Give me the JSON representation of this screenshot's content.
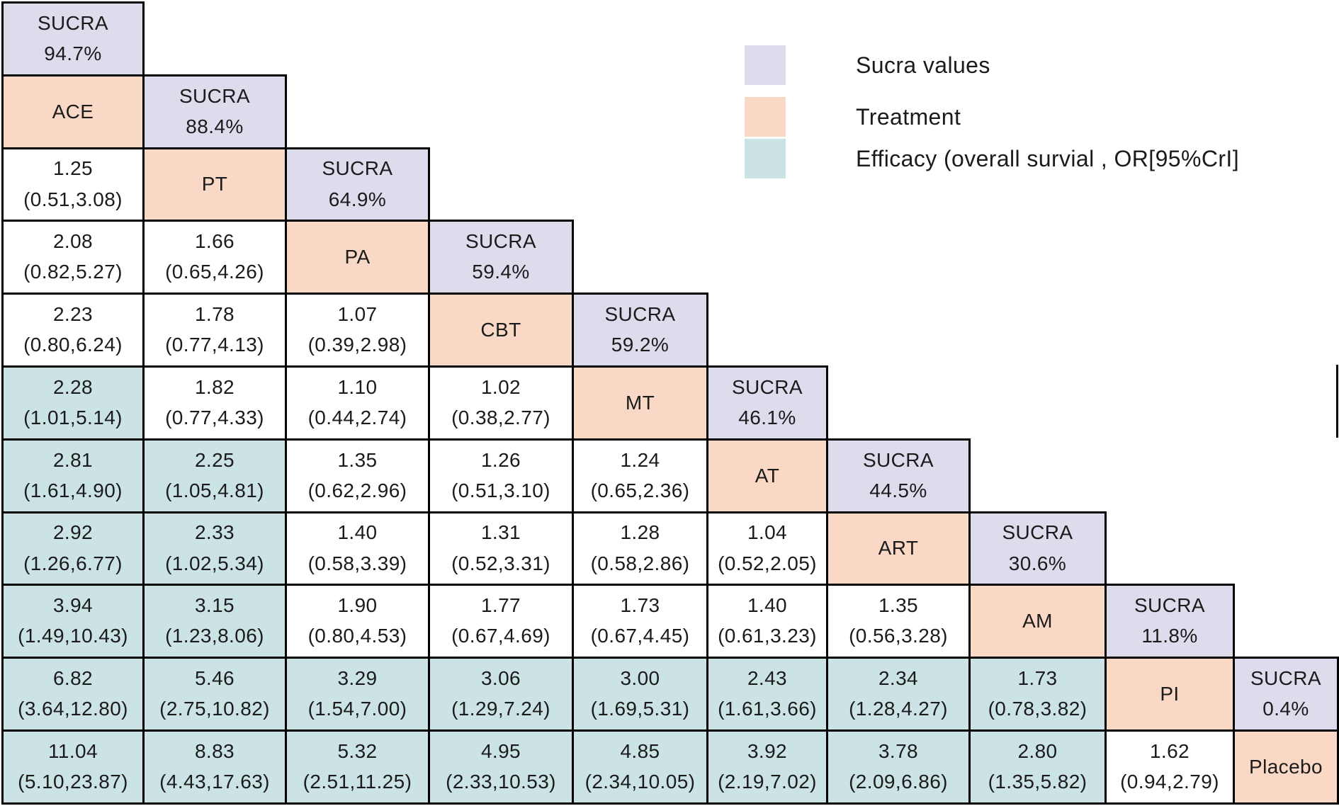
{
  "colors": {
    "sucra": "#dcdcec",
    "treatment": "#f9d9c6",
    "efficacy": "#cbe3e4",
    "plain": "#ffffff",
    "border": "#000000",
    "text": "#1b1b1b"
  },
  "legend": {
    "items": [
      {
        "swatch": "sucra",
        "label": "Sucra values"
      },
      {
        "swatch": "treatment",
        "label": "Treatment"
      },
      {
        "swatch": "efficacy",
        "label": "Efficacy (overall survial ,  OR[95%CrI]"
      }
    ]
  },
  "chart_data": {
    "type": "table",
    "treatments": [
      {
        "abbr": "ACE",
        "sucra": "94.7%"
      },
      {
        "abbr": "PT",
        "sucra": "88.4%"
      },
      {
        "abbr": "PA",
        "sucra": "64.9%"
      },
      {
        "abbr": "CBT",
        "sucra": "59.4%"
      },
      {
        "abbr": "MT",
        "sucra": "59.2%"
      },
      {
        "abbr": "AT",
        "sucra": "46.1%"
      },
      {
        "abbr": "ART",
        "sucra": "44.5%"
      },
      {
        "abbr": "AM",
        "sucra": "30.6%"
      },
      {
        "abbr": "PI",
        "sucra": "11.8%"
      },
      {
        "abbr": "Placebo",
        "sucra": "0.4%"
      }
    ],
    "rows": [
      {
        "cells": [
          {
            "kind": "sucra",
            "fill": "sucra",
            "lines": [
              "SUCRA",
              "94.7%"
            ]
          }
        ]
      },
      {
        "cells": [
          {
            "kind": "treatment",
            "fill": "treatment",
            "lines": [
              "ACE"
            ]
          },
          {
            "kind": "sucra",
            "fill": "sucra",
            "lines": [
              "SUCRA",
              "88.4%"
            ]
          }
        ]
      },
      {
        "cells": [
          {
            "kind": "or",
            "fill": "plain",
            "lines": [
              "1.25",
              "(0.51,3.08)"
            ]
          },
          {
            "kind": "treatment",
            "fill": "treatment",
            "lines": [
              "PT"
            ]
          },
          {
            "kind": "sucra",
            "fill": "sucra",
            "lines": [
              "SUCRA",
              "64.9%"
            ]
          }
        ]
      },
      {
        "cells": [
          {
            "kind": "or",
            "fill": "plain",
            "lines": [
              "2.08",
              "(0.82,5.27)"
            ]
          },
          {
            "kind": "or",
            "fill": "plain",
            "lines": [
              "1.66",
              "(0.65,4.26)"
            ]
          },
          {
            "kind": "treatment",
            "fill": "treatment",
            "lines": [
              "PA"
            ]
          },
          {
            "kind": "sucra",
            "fill": "sucra",
            "lines": [
              "SUCRA",
              "59.4%"
            ]
          }
        ]
      },
      {
        "cells": [
          {
            "kind": "or",
            "fill": "plain",
            "lines": [
              "2.23",
              "(0.80,6.24)"
            ]
          },
          {
            "kind": "or",
            "fill": "plain",
            "lines": [
              "1.78",
              "(0.77,4.13)"
            ]
          },
          {
            "kind": "or",
            "fill": "plain",
            "lines": [
              "1.07",
              "(0.39,2.98)"
            ]
          },
          {
            "kind": "treatment",
            "fill": "treatment",
            "lines": [
              "CBT"
            ]
          },
          {
            "kind": "sucra",
            "fill": "sucra",
            "lines": [
              "SUCRA",
              "59.2%"
            ]
          }
        ]
      },
      {
        "cells": [
          {
            "kind": "or",
            "fill": "efficacy",
            "lines": [
              "2.28",
              "(1.01,5.14)"
            ]
          },
          {
            "kind": "or",
            "fill": "plain",
            "lines": [
              "1.82",
              "(0.77,4.33)"
            ]
          },
          {
            "kind": "or",
            "fill": "plain",
            "lines": [
              "1.10",
              "(0.44,2.74)"
            ]
          },
          {
            "kind": "or",
            "fill": "plain",
            "lines": [
              "1.02",
              "(0.38,2.77)"
            ]
          },
          {
            "kind": "treatment",
            "fill": "treatment",
            "lines": [
              "MT"
            ]
          },
          {
            "kind": "sucra",
            "fill": "sucra",
            "lines": [
              "SUCRA",
              "46.1%"
            ]
          }
        ]
      },
      {
        "cells": [
          {
            "kind": "or",
            "fill": "efficacy",
            "lines": [
              "2.81",
              "(1.61,4.90)"
            ]
          },
          {
            "kind": "or",
            "fill": "efficacy",
            "lines": [
              "2.25",
              "(1.05,4.81)"
            ]
          },
          {
            "kind": "or",
            "fill": "plain",
            "lines": [
              "1.35",
              "(0.62,2.96)"
            ]
          },
          {
            "kind": "or",
            "fill": "plain",
            "lines": [
              "1.26",
              "(0.51,3.10)"
            ]
          },
          {
            "kind": "or",
            "fill": "plain",
            "lines": [
              "1.24",
              "(0.65,2.36)"
            ]
          },
          {
            "kind": "treatment",
            "fill": "treatment",
            "lines": [
              "AT"
            ]
          },
          {
            "kind": "sucra",
            "fill": "sucra",
            "lines": [
              "SUCRA",
              "44.5%"
            ]
          }
        ]
      },
      {
        "cells": [
          {
            "kind": "or",
            "fill": "efficacy",
            "lines": [
              "2.92",
              "(1.26,6.77)"
            ]
          },
          {
            "kind": "or",
            "fill": "efficacy",
            "lines": [
              "2.33",
              "(1.02,5.34)"
            ]
          },
          {
            "kind": "or",
            "fill": "plain",
            "lines": [
              "1.40",
              "(0.58,3.39)"
            ]
          },
          {
            "kind": "or",
            "fill": "plain",
            "lines": [
              "1.31",
              "(0.52,3.31)"
            ]
          },
          {
            "kind": "or",
            "fill": "plain",
            "lines": [
              "1.28",
              "(0.58,2.86)"
            ]
          },
          {
            "kind": "or",
            "fill": "plain",
            "lines": [
              "1.04",
              "(0.52,2.05)"
            ]
          },
          {
            "kind": "treatment",
            "fill": "treatment",
            "lines": [
              "ART"
            ]
          },
          {
            "kind": "sucra",
            "fill": "sucra",
            "lines": [
              "SUCRA",
              "30.6%"
            ]
          }
        ]
      },
      {
        "cells": [
          {
            "kind": "or",
            "fill": "efficacy",
            "lines": [
              "3.94",
              "(1.49,10.43)"
            ]
          },
          {
            "kind": "or",
            "fill": "efficacy",
            "lines": [
              "3.15",
              "(1.23,8.06)"
            ]
          },
          {
            "kind": "or",
            "fill": "plain",
            "lines": [
              "1.90",
              "(0.80,4.53)"
            ]
          },
          {
            "kind": "or",
            "fill": "plain",
            "lines": [
              "1.77",
              "(0.67,4.69)"
            ]
          },
          {
            "kind": "or",
            "fill": "plain",
            "lines": [
              "1.73",
              "(0.67,4.45)"
            ]
          },
          {
            "kind": "or",
            "fill": "plain",
            "lines": [
              "1.40",
              "(0.61,3.23)"
            ]
          },
          {
            "kind": "or",
            "fill": "plain",
            "lines": [
              "1.35",
              "(0.56,3.28)"
            ]
          },
          {
            "kind": "treatment",
            "fill": "treatment",
            "lines": [
              "AM"
            ]
          },
          {
            "kind": "sucra",
            "fill": "sucra",
            "lines": [
              "SUCRA",
              "11.8%"
            ]
          }
        ]
      },
      {
        "cells": [
          {
            "kind": "or",
            "fill": "efficacy",
            "lines": [
              "6.82",
              "(3.64,12.80)"
            ]
          },
          {
            "kind": "or",
            "fill": "efficacy",
            "lines": [
              "5.46",
              "(2.75,10.82)"
            ]
          },
          {
            "kind": "or",
            "fill": "efficacy",
            "lines": [
              "3.29",
              "(1.54,7.00)"
            ]
          },
          {
            "kind": "or",
            "fill": "efficacy",
            "lines": [
              "3.06",
              "(1.29,7.24)"
            ]
          },
          {
            "kind": "or",
            "fill": "efficacy",
            "lines": [
              "3.00",
              "(1.69,5.31)"
            ]
          },
          {
            "kind": "or",
            "fill": "efficacy",
            "lines": [
              "2.43",
              "(1.61,3.66)"
            ]
          },
          {
            "kind": "or",
            "fill": "efficacy",
            "lines": [
              "2.34",
              "(1.28,4.27)"
            ]
          },
          {
            "kind": "or",
            "fill": "efficacy",
            "lines": [
              "1.73",
              "(0.78,3.82)"
            ]
          },
          {
            "kind": "treatment",
            "fill": "treatment",
            "lines": [
              "PI"
            ]
          },
          {
            "kind": "sucra",
            "fill": "sucra",
            "lines": [
              "SUCRA",
              "0.4%"
            ]
          }
        ]
      },
      {
        "cells": [
          {
            "kind": "or",
            "fill": "efficacy",
            "lines": [
              "11.04",
              "(5.10,23.87)"
            ]
          },
          {
            "kind": "or",
            "fill": "efficacy",
            "lines": [
              "8.83",
              "(4.43,17.63)"
            ]
          },
          {
            "kind": "or",
            "fill": "efficacy",
            "lines": [
              "5.32",
              "(2.51,11.25)"
            ]
          },
          {
            "kind": "or",
            "fill": "efficacy",
            "lines": [
              "4.95",
              "(2.33,10.53)"
            ]
          },
          {
            "kind": "or",
            "fill": "efficacy",
            "lines": [
              "4.85",
              "(2.34,10.05)"
            ]
          },
          {
            "kind": "or",
            "fill": "efficacy",
            "lines": [
              "3.92",
              "(2.19,7.02)"
            ]
          },
          {
            "kind": "or",
            "fill": "efficacy",
            "lines": [
              "3.78",
              "(2.09,6.86)"
            ]
          },
          {
            "kind": "or",
            "fill": "efficacy",
            "lines": [
              "2.80",
              "(1.35,5.82)"
            ]
          },
          {
            "kind": "or",
            "fill": "plain",
            "lines": [
              "1.62",
              "(0.94,2.79)"
            ]
          },
          {
            "kind": "treatment",
            "fill": "treatment",
            "lines": [
              "Placebo"
            ]
          }
        ]
      }
    ]
  }
}
